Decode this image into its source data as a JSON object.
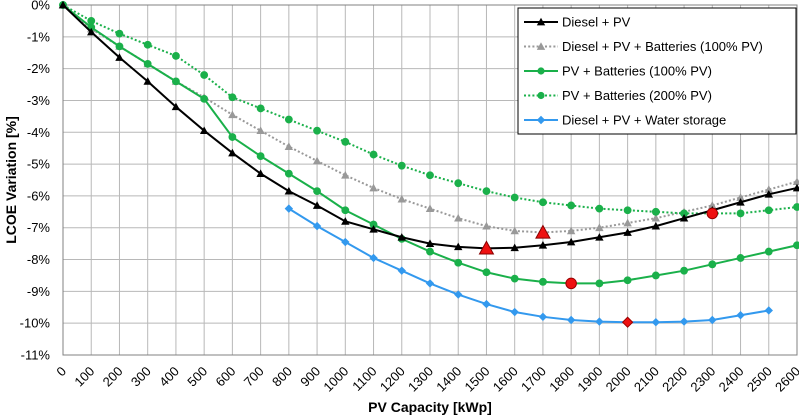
{
  "chart_data": {
    "type": "line",
    "xlabel": "PV Capacity [kWp]",
    "ylabel": "LCOE Variation [%]",
    "xlim": [
      0,
      2600
    ],
    "ylim": [
      -11,
      0
    ],
    "xticks": [
      0,
      100,
      200,
      300,
      400,
      500,
      600,
      700,
      800,
      900,
      1000,
      1100,
      1200,
      1300,
      1400,
      1500,
      1600,
      1700,
      1800,
      1900,
      2000,
      2100,
      2200,
      2300,
      2400,
      2500,
      2600
    ],
    "xtick_labels": [
      "0",
      "100",
      "200",
      "300",
      "400",
      "500",
      "600",
      "700",
      "800",
      "900",
      "1000",
      "1100",
      "1200",
      "1300",
      "1400",
      "1500",
      "1600",
      "1700",
      "1800",
      "1900",
      "2000",
      "2100",
      "2200",
      "2300",
      "2400",
      "2500",
      "2600"
    ],
    "yticks": [
      0,
      -1,
      -2,
      -3,
      -4,
      -5,
      -6,
      -7,
      -8,
      -9,
      -10,
      -11
    ],
    "ytick_labels": [
      "0%",
      "-1%",
      "-2%",
      "-3%",
      "-4%",
      "-5%",
      "-6%",
      "-7%",
      "-8%",
      "-9%",
      "-10%",
      "-11%"
    ],
    "grid": true,
    "legend_position": "top-right",
    "series": [
      {
        "name": "Diesel + PV",
        "color": "#000000",
        "line_style": "solid",
        "marker": "triangle",
        "x": [
          0,
          100,
          200,
          300,
          400,
          500,
          600,
          700,
          800,
          900,
          1000,
          1100,
          1200,
          1300,
          1400,
          1500,
          1600,
          1700,
          1800,
          1900,
          2000,
          2100,
          2200,
          2300,
          2400,
          2500,
          2600
        ],
        "y": [
          0,
          -0.85,
          -1.65,
          -2.4,
          -3.2,
          -3.95,
          -4.65,
          -5.3,
          -5.85,
          -6.3,
          -6.8,
          -7.05,
          -7.3,
          -7.5,
          -7.6,
          -7.65,
          -7.63,
          -7.55,
          -7.45,
          -7.3,
          -7.15,
          -6.95,
          -6.7,
          -6.45,
          -6.2,
          -5.95,
          -5.75
        ],
        "highlights": [
          {
            "x": 1500,
            "y": -7.65
          }
        ]
      },
      {
        "name": "Diesel + PV + Batteries (100% PV)",
        "color": "#999999",
        "line_style": "dotted",
        "marker": "triangle",
        "x": [
          0,
          100,
          200,
          300,
          400,
          500,
          600,
          700,
          800,
          900,
          1000,
          1100,
          1200,
          1300,
          1400,
          1500,
          1600,
          1700,
          1800,
          1900,
          2000,
          2100,
          2200,
          2300,
          2400,
          2500,
          2600
        ],
        "y": [
          0,
          -0.75,
          -1.3,
          -1.85,
          -2.4,
          -2.9,
          -3.45,
          -3.95,
          -4.45,
          -4.9,
          -5.35,
          -5.75,
          -6.1,
          -6.4,
          -6.7,
          -6.95,
          -7.1,
          -7.15,
          -7.1,
          -7.0,
          -6.85,
          -6.7,
          -6.5,
          -6.3,
          -6.05,
          -5.8,
          -5.55
        ],
        "highlights": [
          {
            "x": 1700,
            "y": -7.15
          }
        ]
      },
      {
        "name": "PV + Batteries (100% PV)",
        "color": "#1ab04a",
        "line_style": "solid",
        "marker": "circle",
        "x": [
          0,
          100,
          200,
          300,
          400,
          500,
          600,
          700,
          800,
          900,
          1000,
          1100,
          1200,
          1300,
          1400,
          1500,
          1600,
          1700,
          1800,
          1900,
          2000,
          2100,
          2200,
          2300,
          2400,
          2500,
          2600
        ],
        "y": [
          0,
          -0.7,
          -1.3,
          -1.85,
          -2.4,
          -2.95,
          -4.15,
          -4.75,
          -5.3,
          -5.85,
          -6.45,
          -6.9,
          -7.35,
          -7.75,
          -8.1,
          -8.4,
          -8.6,
          -8.7,
          -8.75,
          -8.75,
          -8.65,
          -8.5,
          -8.35,
          -8.15,
          -7.95,
          -7.75,
          -7.55
        ],
        "highlights": [
          {
            "x": 1800,
            "y": -8.75
          }
        ]
      },
      {
        "name": "PV + Batteries (200% PV)",
        "color": "#1ab04a",
        "line_style": "dotted",
        "marker": "circle",
        "x": [
          0,
          100,
          200,
          300,
          400,
          500,
          600,
          700,
          800,
          900,
          1000,
          1100,
          1200,
          1300,
          1400,
          1500,
          1600,
          1700,
          1800,
          1900,
          2000,
          2100,
          2200,
          2300,
          2400,
          2500,
          2600
        ],
        "y": [
          0,
          -0.5,
          -0.9,
          -1.25,
          -1.6,
          -2.2,
          -2.9,
          -3.25,
          -3.6,
          -3.95,
          -4.3,
          -4.7,
          -5.05,
          -5.35,
          -5.6,
          -5.85,
          -6.05,
          -6.2,
          -6.3,
          -6.4,
          -6.45,
          -6.5,
          -6.55,
          -6.55,
          -6.55,
          -6.45,
          -6.35
        ],
        "highlights": [
          {
            "x": 2300,
            "y": -6.55
          }
        ]
      },
      {
        "name": "Diesel + PV + Water storage",
        "color": "#3399ee",
        "line_style": "solid",
        "marker": "diamond",
        "x": [
          800,
          900,
          1000,
          1100,
          1200,
          1300,
          1400,
          1500,
          1600,
          1700,
          1800,
          1900,
          2000,
          2100,
          2200,
          2300,
          2400,
          2500
        ],
        "y": [
          -6.4,
          -6.95,
          -7.45,
          -7.95,
          -8.35,
          -8.75,
          -9.1,
          -9.4,
          -9.65,
          -9.8,
          -9.9,
          -9.95,
          -9.97,
          -9.97,
          -9.95,
          -9.9,
          -9.75,
          -9.6
        ],
        "highlights": [
          {
            "x": 2000,
            "y": -9.97
          }
        ]
      }
    ]
  }
}
